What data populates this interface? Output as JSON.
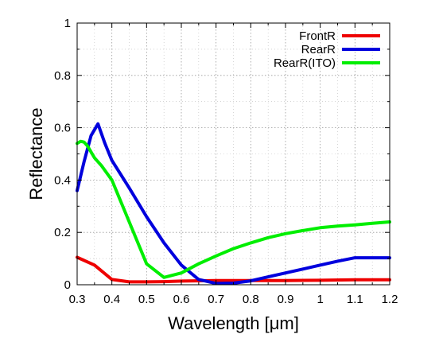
{
  "chart_data": {
    "type": "line",
    "title": "",
    "xlabel": "Wavelength [μm]",
    "ylabel": "Reflectance",
    "xlim": [
      0.3,
      1.2
    ],
    "ylim": [
      0,
      1
    ],
    "x_ticks": [
      0.3,
      0.4,
      0.5,
      0.6,
      0.7,
      0.8,
      0.9,
      1.0,
      1.1,
      1.2
    ],
    "x_tick_labels": [
      "0.3",
      "0.4",
      "0.5",
      "0.6",
      "0.7",
      "0.8",
      "0.9",
      "1",
      "1.1",
      "1.2"
    ],
    "y_ticks": [
      0,
      0.2,
      0.4,
      0.6,
      0.8,
      1.0
    ],
    "y_tick_labels": [
      "0",
      "0.2",
      "0.4",
      "0.6",
      "0.8",
      "1"
    ],
    "grid": "dotted",
    "legend_position": "top-right",
    "series": [
      {
        "name": "FrontR",
        "color": "#ee0000",
        "x": [
          0.3,
          0.35,
          0.4,
          0.45,
          0.5,
          0.55,
          0.6,
          0.7,
          0.8,
          0.9,
          1.0,
          1.1,
          1.2
        ],
        "y": [
          0.105,
          0.075,
          0.02,
          0.011,
          0.011,
          0.012,
          0.014,
          0.016,
          0.016,
          0.016,
          0.017,
          0.019,
          0.019
        ]
      },
      {
        "name": "RearR",
        "color": "#0000dd",
        "x": [
          0.3,
          0.32,
          0.34,
          0.36,
          0.38,
          0.4,
          0.45,
          0.5,
          0.55,
          0.6,
          0.65,
          0.7,
          0.75,
          0.8,
          0.85,
          0.9,
          0.95,
          1.0,
          1.05,
          1.1,
          1.15,
          1.2
        ],
        "y": [
          0.36,
          0.47,
          0.57,
          0.615,
          0.54,
          0.475,
          0.37,
          0.26,
          0.16,
          0.075,
          0.02,
          0.005,
          0.006,
          0.015,
          0.03,
          0.045,
          0.06,
          0.075,
          0.09,
          0.103,
          0.103,
          0.103
        ]
      },
      {
        "name": "RearR(ITO)",
        "color": "#00ee00",
        "x": [
          0.3,
          0.31,
          0.32,
          0.33,
          0.35,
          0.37,
          0.4,
          0.45,
          0.5,
          0.55,
          0.6,
          0.65,
          0.7,
          0.75,
          0.8,
          0.85,
          0.9,
          0.95,
          1.0,
          1.05,
          1.1,
          1.15,
          1.2
        ],
        "y": [
          0.54,
          0.548,
          0.545,
          0.53,
          0.485,
          0.455,
          0.4,
          0.24,
          0.08,
          0.028,
          0.045,
          0.08,
          0.11,
          0.138,
          0.16,
          0.18,
          0.195,
          0.207,
          0.218,
          0.224,
          0.229,
          0.235,
          0.24
        ]
      }
    ]
  }
}
